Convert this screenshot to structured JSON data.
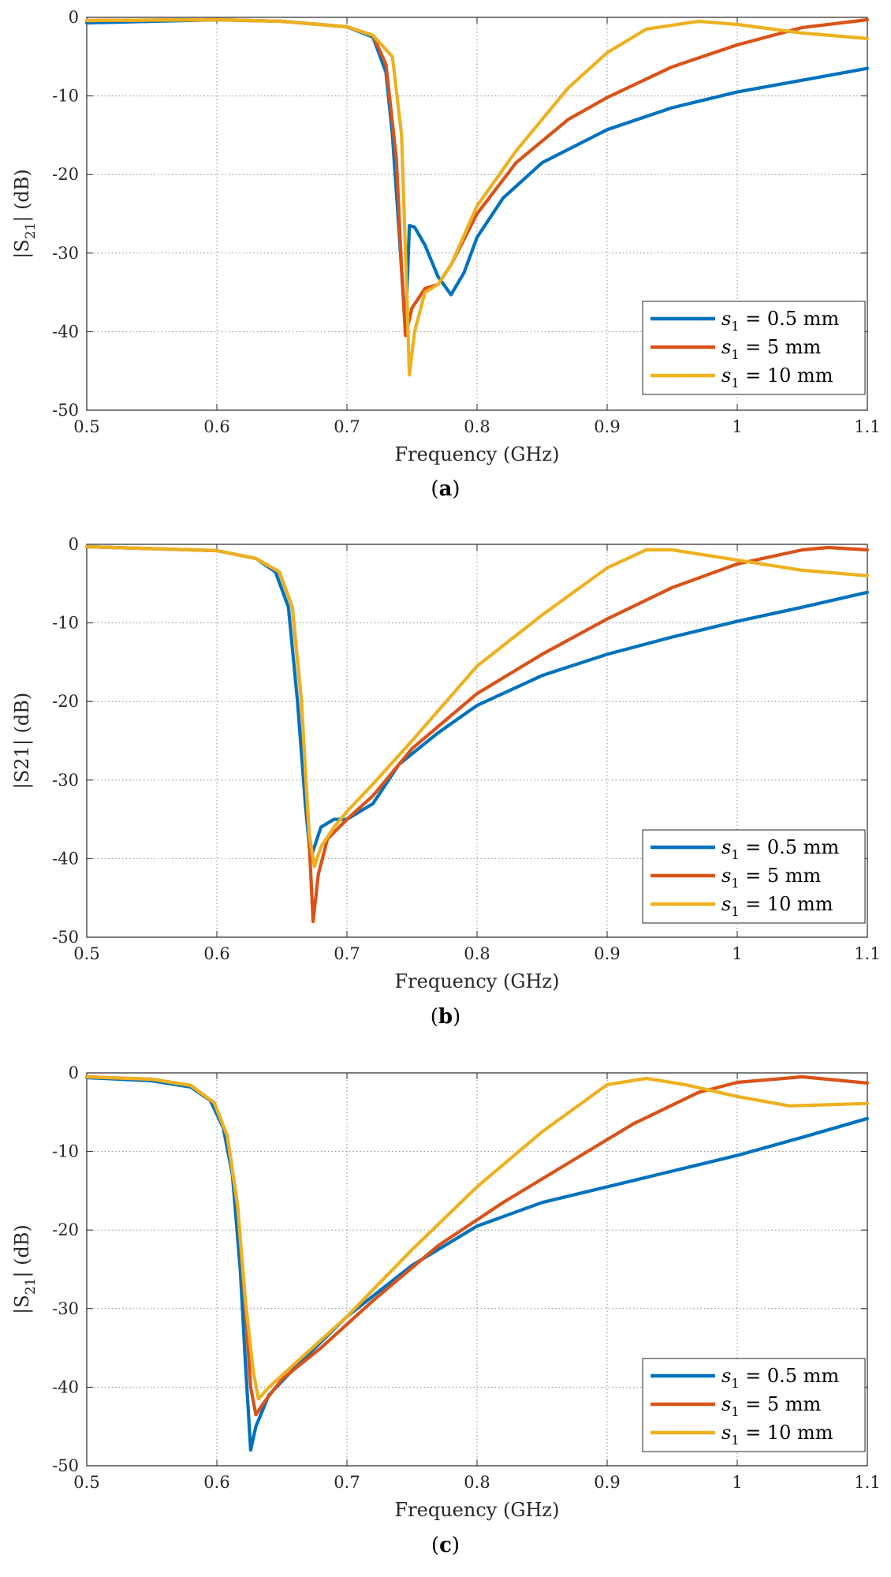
{
  "chart_data": [
    {
      "panel": "a",
      "type": "line",
      "caption_letter": "a",
      "xlabel": "Frequency (GHz)",
      "ylabel": {
        "prefix": "|S",
        "sub": "21",
        "suffix": "| (dB)"
      },
      "xlim": [
        0.5,
        1.1
      ],
      "ylim": [
        -50,
        0
      ],
      "xticks": [
        0.5,
        0.6,
        0.7,
        0.8,
        0.9,
        1,
        1.1
      ],
      "xtick_labels": [
        "0.5",
        "0.6",
        "0.7",
        "0.8",
        "0.9",
        "1",
        "1.1"
      ],
      "yticks": [
        0,
        -10,
        -20,
        -30,
        -40,
        -50
      ],
      "ytick_labels": [
        "0",
        "-10",
        "-20",
        "-30",
        "-40",
        "-50"
      ],
      "grid": true,
      "legend_position": "bottom-right",
      "series": [
        {
          "name": "s1 = 0.5 mm",
          "label_var": "s",
          "label_sub": "1",
          "label_rest": " = 0.5 mm",
          "color": "#0072BD",
          "points": [
            [
              0.5,
              -0.7
            ],
            [
              0.6,
              -0.3
            ],
            [
              0.65,
              -0.5
            ],
            [
              0.7,
              -1.2
            ],
            [
              0.72,
              -2.5
            ],
            [
              0.73,
              -7
            ],
            [
              0.735,
              -15
            ],
            [
              0.74,
              -27
            ],
            [
              0.745,
              -40
            ],
            [
              0.748,
              -26.5
            ],
            [
              0.752,
              -26.7
            ],
            [
              0.76,
              -29
            ],
            [
              0.77,
              -33
            ],
            [
              0.78,
              -35.3
            ],
            [
              0.79,
              -32.5
            ],
            [
              0.8,
              -28
            ],
            [
              0.82,
              -23
            ],
            [
              0.85,
              -18.5
            ],
            [
              0.9,
              -14.3
            ],
            [
              0.95,
              -11.5
            ],
            [
              1.0,
              -9.5
            ],
            [
              1.05,
              -8
            ],
            [
              1.1,
              -6.5
            ]
          ]
        },
        {
          "name": "s1 = 5 mm",
          "label_var": "s",
          "label_sub": "1",
          "label_rest": " = 5 mm",
          "color": "#D95319",
          "points": [
            [
              0.5,
              -0.4
            ],
            [
              0.6,
              -0.3
            ],
            [
              0.65,
              -0.5
            ],
            [
              0.7,
              -1.2
            ],
            [
              0.72,
              -2.3
            ],
            [
              0.73,
              -6
            ],
            [
              0.738,
              -18
            ],
            [
              0.742,
              -32
            ],
            [
              0.745,
              -40.5
            ],
            [
              0.75,
              -37
            ],
            [
              0.76,
              -34.5
            ],
            [
              0.77,
              -34
            ],
            [
              0.78,
              -31.5
            ],
            [
              0.8,
              -25
            ],
            [
              0.83,
              -18.5
            ],
            [
              0.87,
              -13
            ],
            [
              0.9,
              -10.2
            ],
            [
              0.95,
              -6.3
            ],
            [
              1.0,
              -3.5
            ],
            [
              1.05,
              -1.3
            ],
            [
              1.1,
              -0.3
            ]
          ]
        },
        {
          "name": "s1 = 10 mm",
          "label_var": "s",
          "label_sub": "1",
          "label_rest": " = 10 mm",
          "color": "#EDB120",
          "points": [
            [
              0.5,
              -0.4
            ],
            [
              0.6,
              -0.3
            ],
            [
              0.65,
              -0.5
            ],
            [
              0.7,
              -1.2
            ],
            [
              0.72,
              -2.3
            ],
            [
              0.735,
              -5
            ],
            [
              0.742,
              -15
            ],
            [
              0.746,
              -35
            ],
            [
              0.748,
              -45.5
            ],
            [
              0.752,
              -40
            ],
            [
              0.76,
              -35
            ],
            [
              0.77,
              -34
            ],
            [
              0.78,
              -31.5
            ],
            [
              0.8,
              -24
            ],
            [
              0.83,
              -17
            ],
            [
              0.87,
              -9
            ],
            [
              0.9,
              -4.5
            ],
            [
              0.93,
              -1.5
            ],
            [
              0.97,
              -0.5
            ],
            [
              1.0,
              -0.9
            ],
            [
              1.05,
              -2
            ],
            [
              1.1,
              -2.7
            ]
          ]
        }
      ]
    },
    {
      "panel": "b",
      "type": "line",
      "caption_letter": "b",
      "xlabel": "Frequency (GHz)",
      "ylabel": {
        "prefix": "|S21| (dB)",
        "sub": "",
        "suffix": ""
      },
      "xlim": [
        0.5,
        1.1
      ],
      "ylim": [
        -50,
        0
      ],
      "xticks": [
        0.5,
        0.6,
        0.7,
        0.8,
        0.9,
        1,
        1.1
      ],
      "xtick_labels": [
        "0.5",
        "0.6",
        "0.7",
        "0.8",
        "0.9",
        "1",
        "1.1"
      ],
      "yticks": [
        0,
        -10,
        -20,
        -30,
        -40,
        -50
      ],
      "ytick_labels": [
        "0",
        "-10",
        "-20",
        "-30",
        "-40",
        "-50"
      ],
      "grid": true,
      "legend_position": "bottom-right",
      "series": [
        {
          "name": "s1 = 0.5 mm",
          "label_var": "s",
          "label_sub": "1",
          "label_rest": " = 0.5 mm",
          "color": "#0072BD",
          "points": [
            [
              0.5,
              -0.3
            ],
            [
              0.6,
              -0.8
            ],
            [
              0.63,
              -1.8
            ],
            [
              0.645,
              -3.5
            ],
            [
              0.655,
              -8
            ],
            [
              0.662,
              -20
            ],
            [
              0.668,
              -33
            ],
            [
              0.672,
              -40
            ],
            [
              0.676,
              -38
            ],
            [
              0.68,
              -36
            ],
            [
              0.69,
              -35
            ],
            [
              0.7,
              -35
            ],
            [
              0.72,
              -33
            ],
            [
              0.74,
              -28
            ],
            [
              0.77,
              -24
            ],
            [
              0.8,
              -20.5
            ],
            [
              0.85,
              -16.7
            ],
            [
              0.9,
              -14
            ],
            [
              0.95,
              -11.8
            ],
            [
              1.0,
              -9.8
            ],
            [
              1.05,
              -8
            ],
            [
              1.1,
              -6.1
            ]
          ]
        },
        {
          "name": "s1 = 5 mm",
          "label_var": "s",
          "label_sub": "1",
          "label_rest": " = 5 mm",
          "color": "#D95319",
          "points": [
            [
              0.5,
              -0.3
            ],
            [
              0.6,
              -0.8
            ],
            [
              0.63,
              -1.8
            ],
            [
              0.648,
              -3.5
            ],
            [
              0.658,
              -8
            ],
            [
              0.665,
              -20
            ],
            [
              0.671,
              -38
            ],
            [
              0.674,
              -48
            ],
            [
              0.678,
              -42
            ],
            [
              0.685,
              -37.5
            ],
            [
              0.7,
              -35
            ],
            [
              0.72,
              -32
            ],
            [
              0.75,
              -26
            ],
            [
              0.8,
              -19
            ],
            [
              0.85,
              -14
            ],
            [
              0.9,
              -9.5
            ],
            [
              0.95,
              -5.5
            ],
            [
              1.0,
              -2.5
            ],
            [
              1.05,
              -0.7
            ],
            [
              1.07,
              -0.4
            ],
            [
              1.1,
              -0.7
            ]
          ]
        },
        {
          "name": "s1 = 10 mm",
          "label_var": "s",
          "label_sub": "1",
          "label_rest": " = 10 mm",
          "color": "#EDB120",
          "points": [
            [
              0.5,
              -0.3
            ],
            [
              0.6,
              -0.8
            ],
            [
              0.63,
              -1.8
            ],
            [
              0.648,
              -3.5
            ],
            [
              0.658,
              -8
            ],
            [
              0.665,
              -20
            ],
            [
              0.671,
              -37
            ],
            [
              0.675,
              -41
            ],
            [
              0.68,
              -38.5
            ],
            [
              0.69,
              -36
            ],
            [
              0.7,
              -34
            ],
            [
              0.72,
              -30.5
            ],
            [
              0.75,
              -25
            ],
            [
              0.8,
              -15.5
            ],
            [
              0.85,
              -9
            ],
            [
              0.9,
              -3
            ],
            [
              0.93,
              -0.7
            ],
            [
              0.95,
              -0.7
            ],
            [
              1.0,
              -2
            ],
            [
              1.05,
              -3.3
            ],
            [
              1.1,
              -4
            ]
          ]
        }
      ]
    },
    {
      "panel": "c",
      "type": "line",
      "caption_letter": "c",
      "xlabel": "Frequency (GHz)",
      "ylabel": {
        "prefix": "|S",
        "sub": "21",
        "suffix": "| (dB)"
      },
      "xlim": [
        0.5,
        1.1
      ],
      "ylim": [
        -50,
        0
      ],
      "xticks": [
        0.5,
        0.6,
        0.7,
        0.8,
        0.9,
        1,
        1.1
      ],
      "xtick_labels": [
        "0.5",
        "0.6",
        "0.7",
        "0.8",
        "0.9",
        "1",
        "1.1"
      ],
      "yticks": [
        0,
        -10,
        -20,
        -30,
        -40,
        -50
      ],
      "ytick_labels": [
        "0",
        "-10",
        "-20",
        "-30",
        "-40",
        "-50"
      ],
      "grid": true,
      "legend_position": "bottom-right",
      "series": [
        {
          "name": "s1 = 0.5 mm",
          "label_var": "s",
          "label_sub": "1",
          "label_rest": " = 0.5 mm",
          "color": "#0072BD",
          "points": [
            [
              0.5,
              -0.6
            ],
            [
              0.55,
              -1
            ],
            [
              0.58,
              -1.8
            ],
            [
              0.595,
              -3.5
            ],
            [
              0.605,
              -7
            ],
            [
              0.612,
              -13
            ],
            [
              0.618,
              -25
            ],
            [
              0.622,
              -37
            ],
            [
              0.626,
              -48
            ],
            [
              0.63,
              -45
            ],
            [
              0.64,
              -41
            ],
            [
              0.66,
              -37.5
            ],
            [
              0.7,
              -31
            ],
            [
              0.75,
              -24.5
            ],
            [
              0.8,
              -19.5
            ],
            [
              0.85,
              -16.5
            ],
            [
              0.9,
              -14.5
            ],
            [
              0.95,
              -12.5
            ],
            [
              1.0,
              -10.5
            ],
            [
              1.05,
              -8.2
            ],
            [
              1.1,
              -5.8
            ]
          ]
        },
        {
          "name": "s1 = 5 mm",
          "label_var": "s",
          "label_sub": "1",
          "label_rest": " = 5 mm",
          "color": "#D95319",
          "points": [
            [
              0.5,
              -0.5
            ],
            [
              0.55,
              -0.8
            ],
            [
              0.58,
              -1.6
            ],
            [
              0.598,
              -3.8
            ],
            [
              0.608,
              -8
            ],
            [
              0.616,
              -17
            ],
            [
              0.622,
              -30
            ],
            [
              0.626,
              -40
            ],
            [
              0.63,
              -43.5
            ],
            [
              0.636,
              -42
            ],
            [
              0.65,
              -39
            ],
            [
              0.68,
              -35
            ],
            [
              0.72,
              -29
            ],
            [
              0.77,
              -22
            ],
            [
              0.82,
              -16.5
            ],
            [
              0.87,
              -11.5
            ],
            [
              0.92,
              -6.5
            ],
            [
              0.97,
              -2.5
            ],
            [
              1.0,
              -1.2
            ],
            [
              1.05,
              -0.5
            ],
            [
              1.1,
              -1.3
            ]
          ]
        },
        {
          "name": "s1 = 10 mm",
          "label_var": "s",
          "label_sub": "1",
          "label_rest": " = 10 mm",
          "color": "#EDB120",
          "points": [
            [
              0.5,
              -0.5
            ],
            [
              0.55,
              -0.8
            ],
            [
              0.58,
              -1.6
            ],
            [
              0.598,
              -3.8
            ],
            [
              0.608,
              -8
            ],
            [
              0.616,
              -17
            ],
            [
              0.622,
              -29
            ],
            [
              0.628,
              -38
            ],
            [
              0.632,
              -41.5
            ],
            [
              0.64,
              -40
            ],
            [
              0.66,
              -37
            ],
            [
              0.7,
              -31
            ],
            [
              0.75,
              -22.5
            ],
            [
              0.8,
              -14.5
            ],
            [
              0.85,
              -7.5
            ],
            [
              0.9,
              -1.5
            ],
            [
              0.93,
              -0.7
            ],
            [
              0.96,
              -1.5
            ],
            [
              1.0,
              -3
            ],
            [
              1.04,
              -4.2
            ],
            [
              1.1,
              -3.9
            ]
          ]
        }
      ]
    }
  ]
}
